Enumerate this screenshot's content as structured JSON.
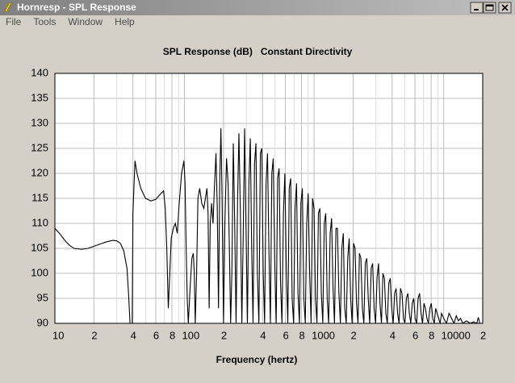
{
  "window": {
    "title": "Hornresp - SPL Response",
    "menu": [
      "File",
      "Tools",
      "Window",
      "Help"
    ]
  },
  "chart_data": {
    "type": "line",
    "title": "SPL Response (dB)   Constant Directivity",
    "xlabel": "Frequency (hertz)",
    "xscale": "log",
    "xlim": [
      10,
      20000
    ],
    "ylim": [
      90,
      140
    ],
    "grid": true,
    "color": "#000000",
    "yticks": [
      90,
      95,
      100,
      105,
      110,
      115,
      120,
      125,
      130,
      135,
      140
    ],
    "xticks": [
      10,
      {
        "value": 20,
        "label": "2"
      },
      {
        "value": 40,
        "label": "4"
      },
      {
        "value": 60,
        "label": "6"
      },
      {
        "value": 80,
        "label": "8"
      },
      100,
      {
        "value": 200,
        "label": "2"
      },
      {
        "value": 400,
        "label": "4"
      },
      {
        "value": 600,
        "label": "6"
      },
      {
        "value": 800,
        "label": "8"
      },
      1000,
      {
        "value": 2000,
        "label": "2"
      },
      {
        "value": 4000,
        "label": "4"
      },
      {
        "value": 6000,
        "label": "6"
      },
      {
        "value": 8000,
        "label": "8"
      },
      10000,
      {
        "value": 20000,
        "label": "2"
      }
    ],
    "xminor_ticks": [
      30,
      50,
      70,
      90,
      300,
      500,
      700,
      900,
      3000,
      5000,
      7000,
      9000
    ],
    "x": [
      10,
      11,
      12,
      13,
      14,
      16,
      18,
      20,
      22,
      25,
      28,
      30,
      32,
      34,
      36,
      37,
      38,
      39.5,
      40,
      41.5,
      43,
      46,
      50,
      55,
      60,
      66,
      69,
      71,
      73,
      75,
      77,
      79,
      82,
      85,
      88,
      91,
      95,
      99,
      101,
      103,
      105,
      107,
      111,
      114,
      117,
      119,
      121,
      124,
      127,
      131,
      136,
      141,
      145,
      149,
      152,
      155,
      158,
      162,
      166,
      170,
      175,
      179,
      183,
      187,
      191,
      195,
      200,
      205,
      211,
      217,
      222,
      227,
      232,
      238,
      244,
      250,
      257,
      263,
      270,
      277,
      284,
      291,
      298,
      306,
      314,
      322,
      330,
      338,
      347,
      356,
      365,
      375,
      385,
      395,
      405,
      415,
      426,
      437,
      448,
      460,
      472,
      484,
      497,
      510,
      523,
      537,
      551,
      565,
      580,
      595,
      611,
      627,
      643,
      660,
      677,
      695,
      713,
      732,
      751,
      771,
      791,
      812,
      833,
      855,
      877,
      900,
      924,
      948,
      973,
      999,
      1025,
      1052,
      1080,
      1108,
      1137,
      1167,
      1198,
      1230,
      1262,
      1295,
      1330,
      1365,
      1400,
      1437,
      1475,
      1514,
      1554,
      1595,
      1637,
      1680,
      1724,
      1770,
      1817,
      1865,
      1914,
      1965,
      2017,
      2070,
      2125,
      2181,
      2238,
      2297,
      2358,
      2420,
      2484,
      2550,
      2617,
      2686,
      2757,
      2830,
      2905,
      2981,
      3060,
      3141,
      3224,
      3309,
      3396,
      3486,
      3578,
      3672,
      3769,
      3869,
      3971,
      4076,
      4183,
      4294,
      4407,
      4524,
      4643,
      4766,
      4891,
      5021,
      5153,
      5289,
      5429,
      5572,
      5719,
      5870,
      6025,
      6184,
      6347,
      6515,
      6687,
      6863,
      7044,
      7230,
      7421,
      7617,
      7818,
      8025,
      8236,
      8454,
      8677,
      8906,
      9141,
      9382,
      9630,
      10000,
      10500,
      11000,
      11500,
      12000,
      12500,
      13000,
      13500,
      14000,
      15000,
      16000,
      17000,
      18000,
      18500,
      19000
    ],
    "values": [
      109,
      107.8,
      106.5,
      105.6,
      105,
      104.8,
      105,
      105.4,
      105.8,
      106.3,
      106.6,
      106.5,
      106,
      104.5,
      101,
      96,
      90,
      90,
      112,
      122.5,
      120,
      117,
      115,
      114.5,
      114.8,
      116,
      116.5,
      113,
      105,
      93,
      100,
      107,
      109,
      110,
      108,
      114,
      120,
      122.5,
      118,
      105,
      95,
      90,
      98,
      103,
      104,
      100,
      90,
      100,
      115,
      117,
      114,
      113,
      115,
      117,
      112,
      93,
      110,
      114,
      110,
      117,
      124,
      113,
      93,
      118,
      129,
      115,
      90,
      110,
      123,
      118,
      105,
      90,
      100,
      126,
      110,
      90,
      115,
      128,
      112,
      90,
      108,
      129,
      110,
      90,
      118,
      127,
      105,
      90,
      122,
      126,
      100,
      90,
      124,
      125,
      100,
      90,
      118,
      124,
      105,
      90,
      120,
      123,
      102,
      90,
      119,
      121,
      98,
      90,
      112,
      120,
      100,
      90,
      117,
      119,
      95,
      90,
      113,
      118,
      96,
      90,
      114,
      117,
      95,
      90,
      110,
      116,
      100,
      90,
      115,
      113,
      95,
      90,
      112,
      113,
      96,
      90,
      110,
      112,
      95,
      90,
      108,
      111,
      97,
      90,
      109,
      109,
      96,
      90,
      105,
      108,
      93,
      90,
      103,
      107,
      95,
      90,
      106,
      105,
      94,
      90,
      104,
      103,
      93,
      90,
      102,
      103,
      95,
      90,
      101,
      102,
      93,
      90,
      99,
      102,
      94,
      90,
      100,
      99,
      92,
      90,
      98,
      99,
      93,
      90,
      96,
      97,
      92,
      90,
      97,
      96,
      91,
      90,
      95,
      96,
      92,
      90,
      94,
      95,
      91,
      90,
      95,
      96,
      92,
      90,
      94,
      93,
      91,
      90,
      93,
      94,
      91,
      90,
      93,
      92,
      91,
      90,
      92,
      91,
      90,
      92,
      91,
      90,
      91.5,
      90.5,
      91,
      90,
      90.5,
      90,
      90.3,
      90,
      91.2,
      90
    ]
  }
}
